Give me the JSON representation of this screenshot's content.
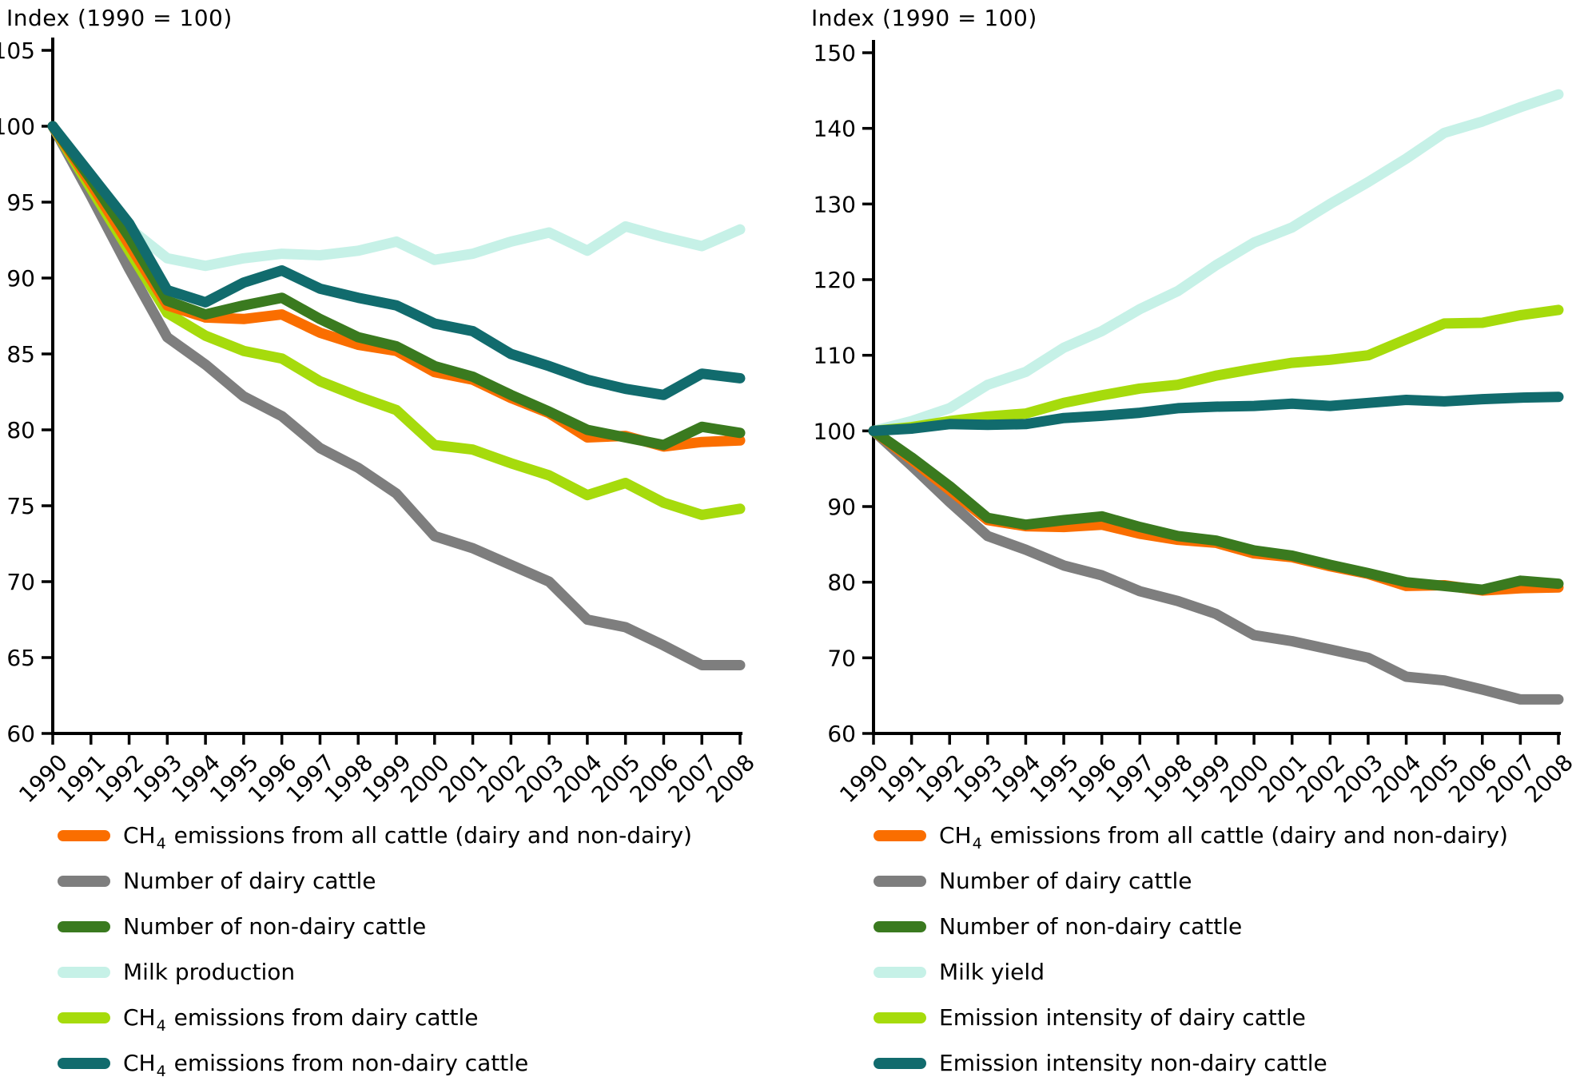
{
  "chart_data": [
    {
      "type": "line",
      "title": "Index (1990 = 100)",
      "xlabel": "",
      "ylabel": "Index (1990 = 100)",
      "grid": false,
      "legend_position": "below",
      "y_axis": {
        "min": 60,
        "max": 105,
        "step": 5
      },
      "years": [
        "1990",
        "1991",
        "1992",
        "1993",
        "1994",
        "1995",
        "1996",
        "1997",
        "1998",
        "1999",
        "2000",
        "2001",
        "2002",
        "2003",
        "2004",
        "2005",
        "2006",
        "2007",
        "2008"
      ],
      "series": [
        {
          "id": "ch4-all-cattle",
          "full_label": "CH4 emissions from all cattle (dairy and non-dairy)",
          "label_prefix": "CH",
          "label_sub": "4",
          "label_text": " emissions from all cattle (dairy and non-dairy)",
          "color": "#FA6E00",
          "z": 3,
          "values": [
            100,
            96.2,
            92.2,
            88.2,
            87.4,
            87.3,
            87.6,
            86.4,
            85.6,
            85.2,
            83.8,
            83.3,
            82.1,
            81.1,
            79.5,
            79.6,
            78.9,
            79.2,
            79.3
          ]
        },
        {
          "id": "number-dairy-cattle",
          "full_label": "Number of dairy cattle",
          "label_prefix": "",
          "label_sub": "",
          "label_text": "Number of dairy cattle",
          "color": "#7E7E7E",
          "z": 1,
          "values": [
            100,
            95.4,
            90.6,
            86.1,
            84.3,
            82.2,
            80.9,
            78.8,
            77.5,
            75.8,
            73.0,
            72.2,
            71.1,
            70.0,
            67.5,
            67.0,
            65.8,
            64.5,
            64.5
          ]
        },
        {
          "id": "number-non-dairy-cattle",
          "full_label": "Number of non-dairy cattle",
          "label_prefix": "",
          "label_sub": "",
          "label_text": "Number of non-dairy cattle",
          "color": "#3A7A1F",
          "z": 4,
          "values": [
            100,
            96.5,
            92.7,
            88.5,
            87.6,
            88.2,
            88.7,
            87.3,
            86.1,
            85.5,
            84.2,
            83.5,
            82.3,
            81.2,
            80.0,
            79.5,
            79.0,
            80.2,
            79.8
          ]
        },
        {
          "id": "milk-production",
          "full_label": "Milk production",
          "label_prefix": "",
          "label_sub": "",
          "label_text": "Milk production",
          "color": "#C6F1E7",
          "z": 0,
          "values": [
            100,
            96.6,
            93.3,
            91.3,
            90.8,
            91.3,
            91.6,
            91.5,
            91.8,
            92.4,
            91.2,
            91.6,
            92.4,
            93.0,
            91.8,
            93.4,
            92.7,
            92.1,
            93.2
          ]
        },
        {
          "id": "ch4-dairy-cattle",
          "full_label": "CH4 emissions from dairy cattle",
          "label_prefix": "CH",
          "label_sub": "4",
          "label_text": " emissions from dairy cattle",
          "color": "#A6DB0C",
          "z": 2,
          "values": [
            100,
            95.9,
            91.8,
            87.7,
            86.2,
            85.2,
            84.7,
            83.2,
            82.2,
            81.3,
            79.0,
            78.7,
            77.8,
            77.0,
            75.7,
            76.5,
            75.2,
            74.4,
            74.8
          ]
        },
        {
          "id": "ch4-non-dairy-cattle",
          "full_label": "CH4 emissions from non-dairy cattle",
          "label_prefix": "CH",
          "label_sub": "4",
          "label_text": " emissions from non-dairy cattle",
          "color": "#116B6D",
          "z": 5,
          "values": [
            100,
            96.8,
            93.6,
            89.2,
            88.4,
            89.7,
            90.5,
            89.3,
            88.7,
            88.2,
            87.0,
            86.5,
            85.0,
            84.2,
            83.3,
            82.7,
            82.3,
            83.7,
            83.4
          ]
        }
      ]
    },
    {
      "type": "line",
      "title": "Index (1990 = 100)",
      "xlabel": "",
      "ylabel": "Index (1990 = 100)",
      "grid": false,
      "legend_position": "below",
      "y_axis": {
        "min": 60,
        "max": 150,
        "step": 10
      },
      "years": [
        "1990",
        "1991",
        "1992",
        "1993",
        "1994",
        "1995",
        "1996",
        "1997",
        "1998",
        "1999",
        "2000",
        "2001",
        "2002",
        "2003",
        "2004",
        "2005",
        "2006",
        "2007",
        "2008"
      ],
      "series": [
        {
          "id": "ch4-all-cattle",
          "full_label": "CH4 emissions from all cattle (dairy and non-dairy)",
          "label_prefix": "CH",
          "label_sub": "4",
          "label_text": " emissions from all cattle (dairy and non-dairy)",
          "color": "#FA6E00",
          "z": 3,
          "values": [
            100,
            96.2,
            92.2,
            88.2,
            87.4,
            87.3,
            87.6,
            86.4,
            85.6,
            85.2,
            83.8,
            83.3,
            82.1,
            81.1,
            79.5,
            79.6,
            78.9,
            79.2,
            79.3
          ]
        },
        {
          "id": "number-dairy-cattle",
          "full_label": "Number of dairy cattle",
          "label_prefix": "",
          "label_sub": "",
          "label_text": "Number of dairy cattle",
          "color": "#7E7E7E",
          "z": 1,
          "values": [
            100,
            95.4,
            90.6,
            86.1,
            84.3,
            82.2,
            80.9,
            78.8,
            77.5,
            75.8,
            73.0,
            72.2,
            71.1,
            70.0,
            67.5,
            67.0,
            65.8,
            64.5,
            64.5
          ]
        },
        {
          "id": "number-non-dairy-cattle",
          "full_label": "Number of non-dairy cattle",
          "label_prefix": "",
          "label_sub": "",
          "label_text": "Number of non-dairy cattle",
          "color": "#3A7A1F",
          "z": 4,
          "values": [
            100,
            96.5,
            92.7,
            88.5,
            87.6,
            88.2,
            88.7,
            87.3,
            86.1,
            85.5,
            84.2,
            83.5,
            82.3,
            81.2,
            80.0,
            79.5,
            79.0,
            80.2,
            79.8
          ]
        },
        {
          "id": "milk-yield",
          "full_label": "Milk yield",
          "label_prefix": "",
          "label_sub": "",
          "label_text": "Milk yield",
          "color": "#C6F1E7",
          "z": 0,
          "values": [
            100,
            101.3,
            103.0,
            106.1,
            107.8,
            111.0,
            113.2,
            116.1,
            118.5,
            121.9,
            124.9,
            126.9,
            130.0,
            132.9,
            136.0,
            139.4,
            140.9,
            142.8,
            144.5
          ]
        },
        {
          "id": "emission-intensity-dairy",
          "full_label": "Emission intensity of dairy cattle",
          "label_prefix": "",
          "label_sub": "",
          "label_text": "Emission intensity of dairy cattle",
          "color": "#A6DB0C",
          "z": 2,
          "values": [
            100,
            100.5,
            101.3,
            101.9,
            102.3,
            103.7,
            104.7,
            105.6,
            106.1,
            107.3,
            108.2,
            109.0,
            109.4,
            110.0,
            112.1,
            114.2,
            114.3,
            115.3,
            116.0
          ]
        },
        {
          "id": "emission-intensity-non-dairy",
          "full_label": "Emission intensity non-dairy cattle",
          "label_prefix": "",
          "label_sub": "",
          "label_text": "Emission intensity non-dairy cattle",
          "color": "#116B6D",
          "z": 5,
          "values": [
            100,
            100.3,
            100.9,
            100.8,
            100.9,
            101.7,
            102.0,
            102.4,
            103.0,
            103.2,
            103.3,
            103.6,
            103.3,
            103.7,
            104.1,
            103.9,
            104.2,
            104.4,
            104.5
          ]
        }
      ]
    }
  ]
}
